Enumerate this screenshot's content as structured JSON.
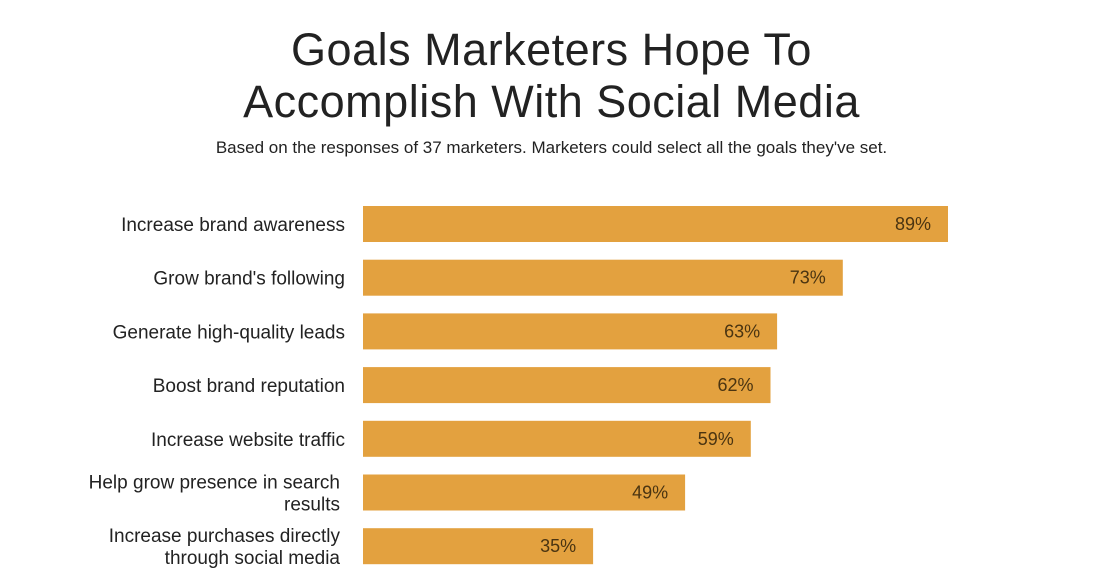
{
  "title_line1": "Goals Marketers Hope To",
  "title_line2": "Accomplish With Social Media",
  "subtitle": "Based on the responses of 37 marketers. Marketers could select all the goals they've set.",
  "colors": {
    "bar": "#E3A13F",
    "text": "#222222"
  },
  "chart_data": {
    "type": "bar",
    "orientation": "horizontal",
    "categories": [
      "Increase brand awareness",
      "Grow brand's following",
      "Generate high-quality leads",
      "Boost brand reputation",
      "Increase website traffic",
      "Help grow presence in search results",
      "Increase purchases directly through social media"
    ],
    "category_lines": [
      [
        "Increase brand awareness"
      ],
      [
        "Grow brand's following"
      ],
      [
        "Generate high-quality leads"
      ],
      [
        "Boost brand reputation"
      ],
      [
        "Increase website traffic"
      ],
      [
        "Help grow presence in search",
        "results"
      ],
      [
        "Increase purchases directly",
        "through social media"
      ]
    ],
    "values": [
      89,
      73,
      63,
      62,
      59,
      49,
      35
    ],
    "value_labels": [
      "89%",
      "73%",
      "63%",
      "62%",
      "59%",
      "49%",
      "35%"
    ],
    "xlim": [
      0,
      100
    ],
    "grid": false,
    "legend": "none"
  }
}
